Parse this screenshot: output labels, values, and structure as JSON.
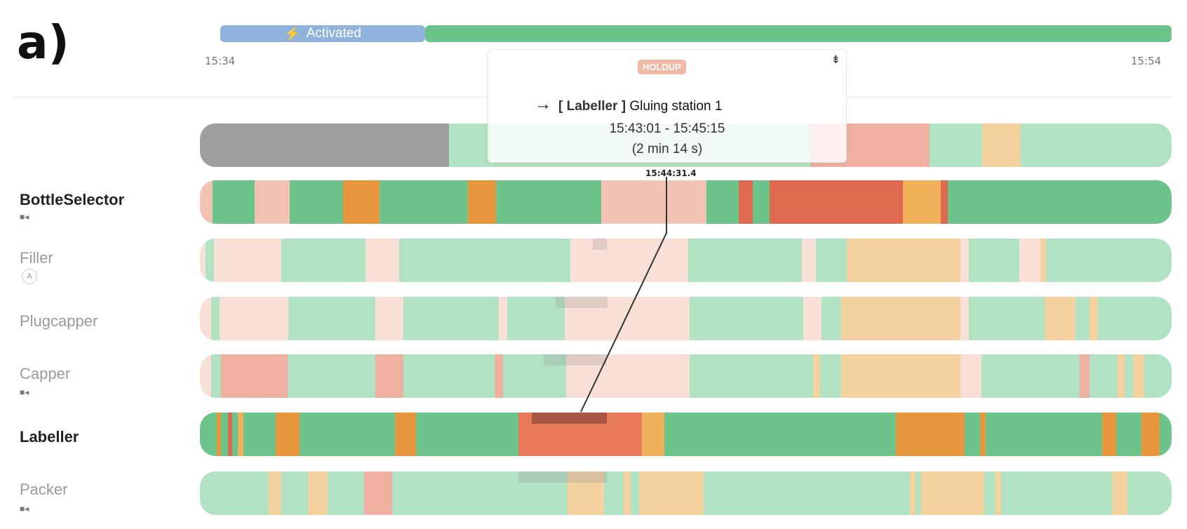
{
  "panel_label": "a)",
  "header": {
    "activated_label": "Activated",
    "activated_icon": "bolt-icon",
    "start_time": "15:34",
    "end_time": "15:54",
    "colors": {
      "activated": "#8fb3dc",
      "running": "#6cc48a"
    }
  },
  "tooltip": {
    "badge": "HOLDUP",
    "pin_icon": "pin-icon",
    "arrow": "→",
    "station_tag": "[ Labeller ]",
    "station_name": "Gluing station 1",
    "time_range": "15:43:01 - 15:45:15",
    "duration": "(2 min 14 s)"
  },
  "cursor_time": "15:44:31.4",
  "legend_colors": {
    "running": "#6cc48a",
    "running_light": "#b2e2c4",
    "idle": "#9e9e9e",
    "holdup": "#f2c2b2",
    "holdup_light": "#f8e0d6",
    "fault": "#e06a50",
    "warning": "#e8973f",
    "warning_light": "#f4d2a0",
    "blocked": "#efb0a2"
  },
  "rows": [
    {
      "name": "",
      "sub": "",
      "subtype": "none",
      "bold": false
    },
    {
      "name": "BottleSelector",
      "sub": "camera-icon",
      "subtype": "camera",
      "bold": true
    },
    {
      "name": "Filler",
      "sub": "A",
      "subtype": "circle",
      "bold": false
    },
    {
      "name": "Plugcapper",
      "sub": "",
      "subtype": "none",
      "bold": false
    },
    {
      "name": "Capper",
      "sub": "camera-icon",
      "subtype": "camera",
      "bold": false
    },
    {
      "name": "Labeller",
      "sub": "",
      "subtype": "none",
      "bold": true
    },
    {
      "name": "Packer",
      "sub": "camera-icon",
      "subtype": "camera",
      "bold": false
    }
  ]
}
